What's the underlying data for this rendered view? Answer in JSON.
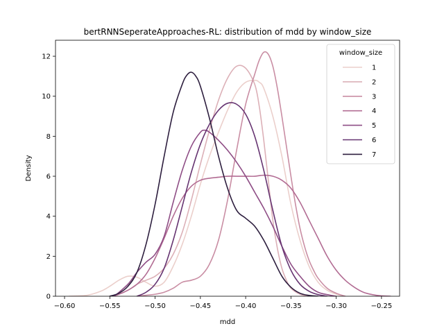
{
  "chart_data": {
    "type": "line",
    "title": "bertRNNSeperateApproaches-RL: distribution of mdd by window_size",
    "xlabel": "mdd",
    "ylabel": "Density",
    "xlim": [
      -0.61,
      -0.23
    ],
    "ylim": [
      0,
      12.8
    ],
    "xticks": [
      -0.6,
      -0.55,
      -0.5,
      -0.45,
      -0.4,
      -0.35,
      -0.3,
      -0.25
    ],
    "xtick_labels": [
      "−0.60",
      "−0.55",
      "−0.50",
      "−0.45",
      "−0.40",
      "−0.35",
      "−0.30",
      "−0.25"
    ],
    "yticks": [
      0,
      2,
      4,
      6,
      8,
      10,
      12
    ],
    "ytick_labels": [
      "0",
      "2",
      "4",
      "6",
      "8",
      "10",
      "12"
    ],
    "grid": false,
    "legend": {
      "title": "window_size",
      "position": "top-right"
    },
    "series": [
      {
        "name": "1",
        "color": "#ebcfcb",
        "x": [
          -0.595,
          -0.575,
          -0.56,
          -0.55,
          -0.54,
          -0.53,
          -0.52,
          -0.51,
          -0.5,
          -0.49,
          -0.48,
          -0.47,
          -0.46,
          -0.45,
          -0.44,
          -0.43,
          -0.42,
          -0.41,
          -0.4,
          -0.39,
          -0.385,
          -0.38,
          -0.37,
          -0.36,
          -0.35,
          -0.34,
          -0.33,
          -0.32,
          -0.31,
          -0.3,
          -0.29
        ],
        "y": [
          0.0,
          0.05,
          0.25,
          0.5,
          0.8,
          1.0,
          0.95,
          0.7,
          0.5,
          0.7,
          1.5,
          2.6,
          4.0,
          5.6,
          7.0,
          8.2,
          9.3,
          10.2,
          10.7,
          10.8,
          10.7,
          10.4,
          9.0,
          7.0,
          4.6,
          2.8,
          1.5,
          0.7,
          0.3,
          0.1,
          0.0
        ]
      },
      {
        "name": "2",
        "color": "#dcb0b7",
        "x": [
          -0.545,
          -0.53,
          -0.52,
          -0.51,
          -0.5,
          -0.49,
          -0.48,
          -0.47,
          -0.46,
          -0.45,
          -0.44,
          -0.43,
          -0.42,
          -0.41,
          -0.4,
          -0.39,
          -0.385,
          -0.38,
          -0.375,
          -0.37,
          -0.365,
          -0.36,
          -0.355,
          -0.35,
          -0.34,
          -0.33
        ],
        "y": [
          0.0,
          0.3,
          0.6,
          0.8,
          1.0,
          1.4,
          2.1,
          3.2,
          4.8,
          6.6,
          8.3,
          9.8,
          10.9,
          11.5,
          11.4,
          10.6,
          9.5,
          7.8,
          5.8,
          3.8,
          2.4,
          1.4,
          0.8,
          0.4,
          0.1,
          0.0
        ]
      },
      {
        "name": "3",
        "color": "#c98da3",
        "x": [
          -0.52,
          -0.51,
          -0.5,
          -0.49,
          -0.48,
          -0.47,
          -0.46,
          -0.45,
          -0.44,
          -0.43,
          -0.42,
          -0.41,
          -0.4,
          -0.39,
          -0.385,
          -0.38,
          -0.375,
          -0.37,
          -0.365,
          -0.36,
          -0.355,
          -0.35,
          -0.345,
          -0.34,
          -0.335,
          -0.33,
          -0.325,
          -0.32,
          -0.31,
          -0.3,
          -0.29
        ],
        "y": [
          0.0,
          0.05,
          0.1,
          0.2,
          0.4,
          0.7,
          0.8,
          1.0,
          1.6,
          2.8,
          4.8,
          7.3,
          9.6,
          11.1,
          11.8,
          12.2,
          12.1,
          11.5,
          10.4,
          9.0,
          7.5,
          6.0,
          4.6,
          3.4,
          2.5,
          1.8,
          1.3,
          0.9,
          0.4,
          0.15,
          0.0
        ]
      },
      {
        "name": "4",
        "color": "#b26c93",
        "x": [
          -0.55,
          -0.54,
          -0.53,
          -0.52,
          -0.51,
          -0.5,
          -0.49,
          -0.48,
          -0.47,
          -0.46,
          -0.45,
          -0.44,
          -0.43,
          -0.42,
          -0.41,
          -0.4,
          -0.39,
          -0.38,
          -0.37,
          -0.36,
          -0.35,
          -0.34,
          -0.33,
          -0.32,
          -0.31,
          -0.3,
          -0.29,
          -0.28,
          -0.27,
          -0.26,
          -0.25,
          -0.24
        ],
        "y": [
          0.0,
          0.1,
          0.3,
          0.6,
          1.1,
          1.9,
          2.9,
          4.0,
          4.9,
          5.5,
          5.8,
          5.9,
          5.95,
          6.0,
          6.0,
          6.0,
          6.0,
          6.05,
          6.0,
          5.8,
          5.4,
          4.7,
          3.8,
          2.9,
          2.0,
          1.3,
          0.8,
          0.45,
          0.2,
          0.08,
          0.02,
          0.0
        ]
      },
      {
        "name": "5",
        "color": "#8e4d85",
        "x": [
          -0.545,
          -0.53,
          -0.52,
          -0.51,
          -0.5,
          -0.49,
          -0.48,
          -0.47,
          -0.46,
          -0.45,
          -0.445,
          -0.44,
          -0.43,
          -0.42,
          -0.41,
          -0.4,
          -0.39,
          -0.38,
          -0.37,
          -0.36,
          -0.35,
          -0.34,
          -0.33,
          -0.32,
          -0.31,
          -0.3
        ],
        "y": [
          0.0,
          0.6,
          1.2,
          1.7,
          2.1,
          3.0,
          4.7,
          6.3,
          7.5,
          8.2,
          8.3,
          8.2,
          7.8,
          7.3,
          6.7,
          6.0,
          5.2,
          4.4,
          3.5,
          2.5,
          1.6,
          1.0,
          0.5,
          0.2,
          0.08,
          0.0
        ]
      },
      {
        "name": "6",
        "color": "#663471",
        "x": [
          -0.52,
          -0.51,
          -0.5,
          -0.49,
          -0.48,
          -0.47,
          -0.46,
          -0.45,
          -0.44,
          -0.43,
          -0.42,
          -0.41,
          -0.4,
          -0.39,
          -0.38,
          -0.37,
          -0.36,
          -0.35,
          -0.34,
          -0.33,
          -0.32,
          -0.31
        ],
        "y": [
          0.0,
          0.2,
          0.6,
          1.4,
          2.8,
          4.5,
          6.2,
          7.6,
          8.6,
          9.3,
          9.65,
          9.6,
          9.1,
          8.0,
          6.3,
          4.3,
          2.5,
          1.3,
          0.6,
          0.25,
          0.08,
          0.0
        ]
      },
      {
        "name": "7",
        "color": "#2d1e3e",
        "x": [
          -0.55,
          -0.54,
          -0.53,
          -0.52,
          -0.51,
          -0.5,
          -0.49,
          -0.48,
          -0.47,
          -0.465,
          -0.46,
          -0.455,
          -0.45,
          -0.44,
          -0.43,
          -0.42,
          -0.41,
          -0.4,
          -0.39,
          -0.38,
          -0.37,
          -0.36,
          -0.35,
          -0.34,
          -0.33,
          -0.32
        ],
        "y": [
          0.0,
          0.15,
          0.5,
          1.2,
          2.6,
          4.6,
          7.0,
          9.2,
          10.6,
          11.05,
          11.2,
          11.0,
          10.5,
          8.9,
          7.0,
          5.4,
          4.3,
          3.9,
          3.5,
          2.8,
          1.9,
          1.0,
          0.45,
          0.15,
          0.04,
          0.0
        ]
      }
    ]
  }
}
